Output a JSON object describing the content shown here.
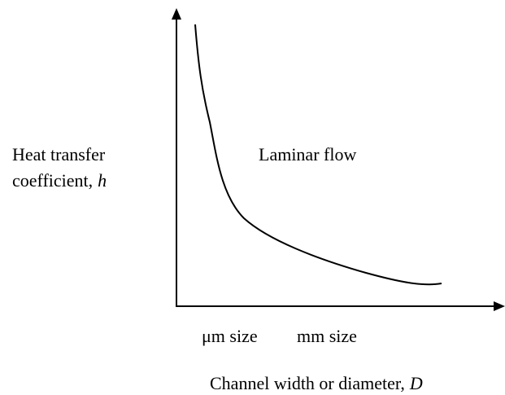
{
  "y_axis_label": {
    "line1": "Heat transfer",
    "line2": "coefficient,",
    "symbol": "h"
  },
  "region_label": "Laminar flow",
  "x_categories": [
    "μm size",
    "mm size"
  ],
  "x_axis_label": {
    "text": "Channel width or diameter,",
    "symbol": "D"
  }
}
